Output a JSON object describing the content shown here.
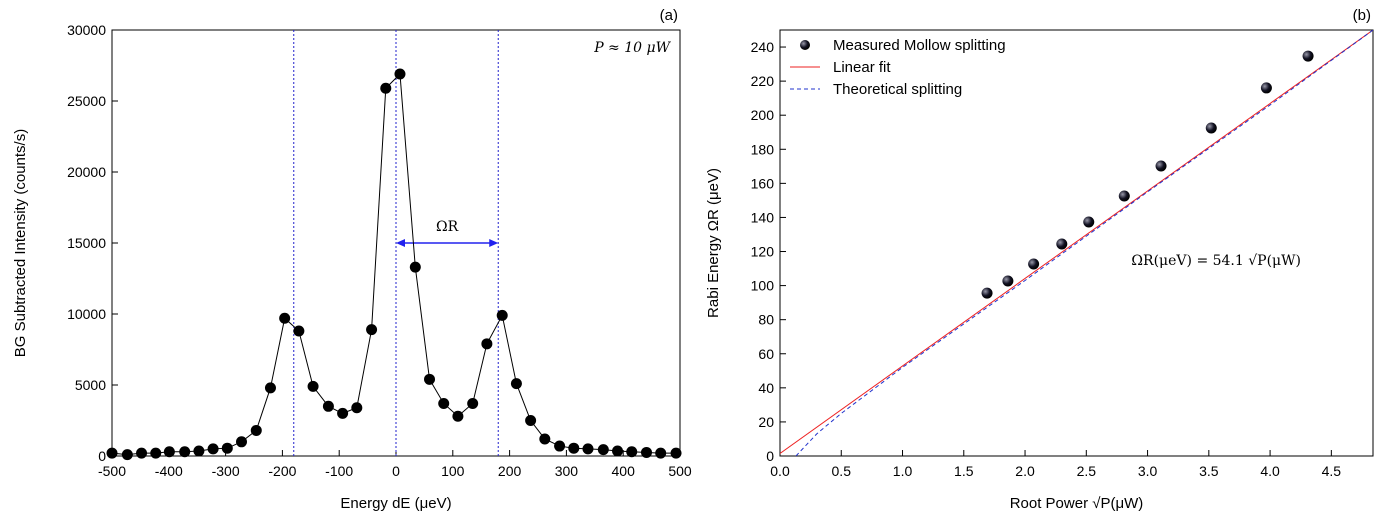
{
  "chart_data": [
    {
      "type": "line",
      "panel_label": "(a)",
      "x_label": "Energy dE (μeV)",
      "y_label": "BG Subtracted Intensity (counts/s)",
      "annotation": "P ≈ 10 μW",
      "x": [
        -500,
        -473,
        -448,
        -423,
        -399,
        -372,
        -347,
        -322,
        -297,
        -272,
        -246,
        -221,
        -196,
        -171,
        -146,
        -119,
        -94,
        -69,
        -43,
        -18,
        7,
        34,
        59,
        84,
        109,
        135,
        160,
        187,
        212,
        237,
        262,
        288,
        313,
        338,
        365,
        390,
        415,
        441,
        466,
        493
      ],
      "series": [
        {
          "color": "#000000",
          "values": [
            200,
            100,
            200,
            200,
            300,
            300,
            350,
            500,
            550,
            1000,
            1800,
            4800,
            9700,
            8800,
            4900,
            3500,
            3000,
            3400,
            8900,
            25900,
            26900,
            13300,
            5400,
            3700,
            2800,
            3700,
            7900,
            9900,
            5100,
            2500,
            1200,
            700,
            550,
            500,
            450,
            350,
            300,
            250,
            200,
            200
          ]
        }
      ],
      "vlines": [
        -180,
        0,
        180
      ],
      "vline_color": "#2222cc",
      "arrow": {
        "from": 0,
        "to": 180,
        "y": 15000,
        "label": "ΩR",
        "color": "#2222ee"
      },
      "xlim": [
        -500,
        500
      ],
      "ylim": [
        0,
        30000
      ],
      "xticks": [
        -500,
        -400,
        -300,
        -200,
        -100,
        0,
        100,
        200,
        300,
        400,
        500
      ],
      "yticks": [
        0,
        5000,
        10000,
        15000,
        20000,
        25000,
        30000
      ]
    },
    {
      "type": "scatter",
      "panel_label": "(b)",
      "x_label": "Root Power √P(μW)",
      "y_label": "Rabi Energy ΩR (μeV)",
      "annotation": "ΩR(μeV) = 54.1 √P(μW)",
      "series": [
        {
          "name": "Measured Mollow splitting",
          "color": "#111122",
          "marker": true,
          "x": [
            1.69,
            1.86,
            2.07,
            2.3,
            2.52,
            2.81,
            3.11,
            3.52,
            3.97,
            4.31
          ],
          "values": [
            95.6,
            102.7,
            112.7,
            124.4,
            137.3,
            152.6,
            170.2,
            192.5,
            216,
            234.7
          ]
        },
        {
          "name": "Linear fit",
          "color": "#ee2222",
          "line": "solid",
          "x": [
            0,
            4.84
          ],
          "values": [
            1.5,
            250
          ]
        },
        {
          "name": "Theoretical splitting",
          "color": "#2233cc",
          "line": "dashed",
          "x": [
            0.13,
            0.3,
            0.5,
            1.0,
            2.0,
            3.0,
            4.0,
            4.84
          ],
          "values": [
            0,
            13,
            25,
            52,
            103,
            155,
            206,
            250
          ]
        }
      ],
      "xlim": [
        0,
        4.84
      ],
      "ylim": [
        0,
        250
      ],
      "xticks": [
        {
          "value": 0,
          "label": "0.0"
        },
        0.5,
        {
          "value": 1,
          "label": "1.0"
        },
        1.5,
        {
          "value": 2,
          "label": "2.0"
        },
        2.5,
        {
          "value": 3,
          "label": "3.0"
        },
        3.5,
        {
          "value": 4,
          "label": "4.0"
        },
        4.5
      ],
      "yticks": [
        0,
        20,
        40,
        60,
        80,
        100,
        120,
        140,
        160,
        180,
        200,
        220,
        240
      ]
    }
  ]
}
